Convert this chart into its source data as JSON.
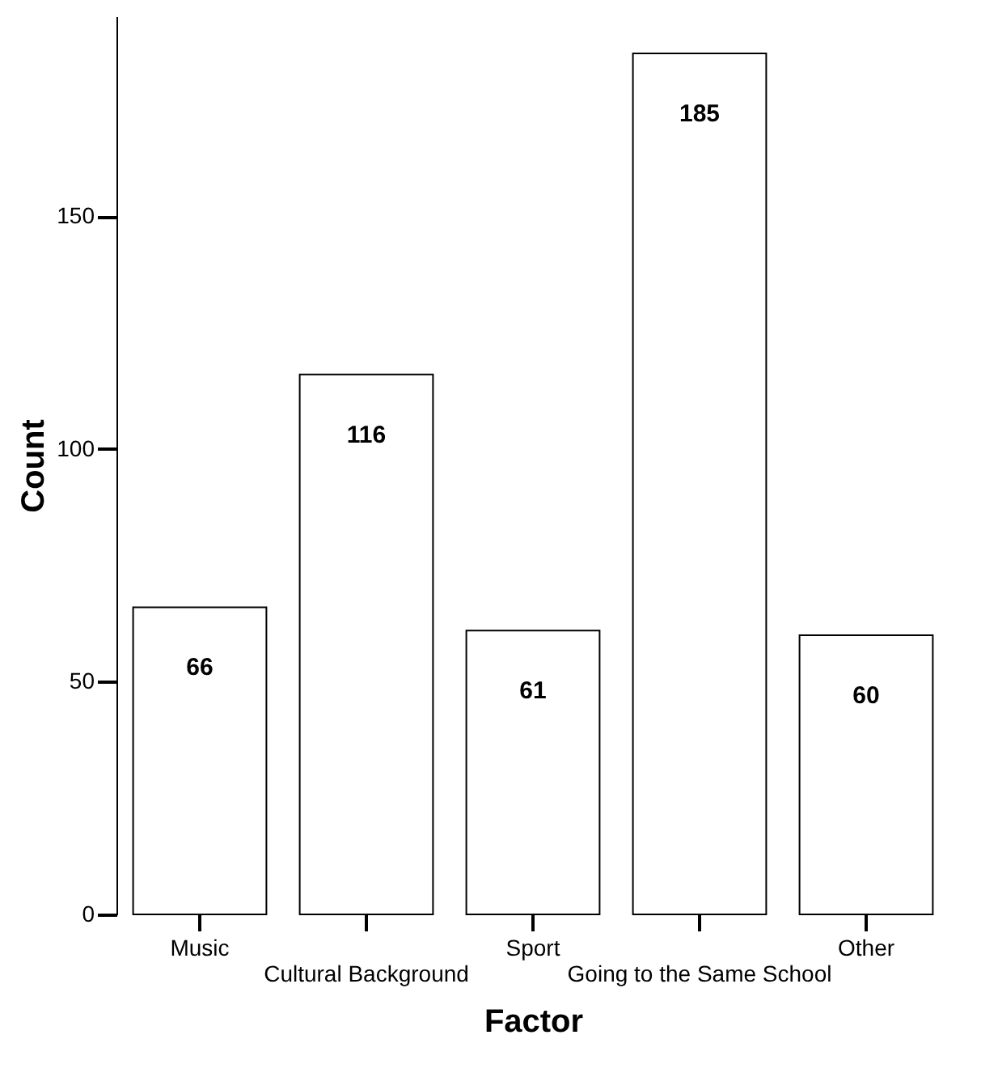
{
  "chart_data": {
    "type": "bar",
    "xlabel": "Factor",
    "ylabel": "Count",
    "categories": [
      "Music",
      "Cultural Background",
      "Sport",
      "Going to the Same School",
      "Other"
    ],
    "values": [
      66,
      116,
      61,
      185,
      60
    ],
    "color": "#ffffff",
    "ylim": [
      0,
      193
    ],
    "yticks": [
      0,
      50,
      100,
      150
    ],
    "grid": false,
    "data_labels": true
  }
}
